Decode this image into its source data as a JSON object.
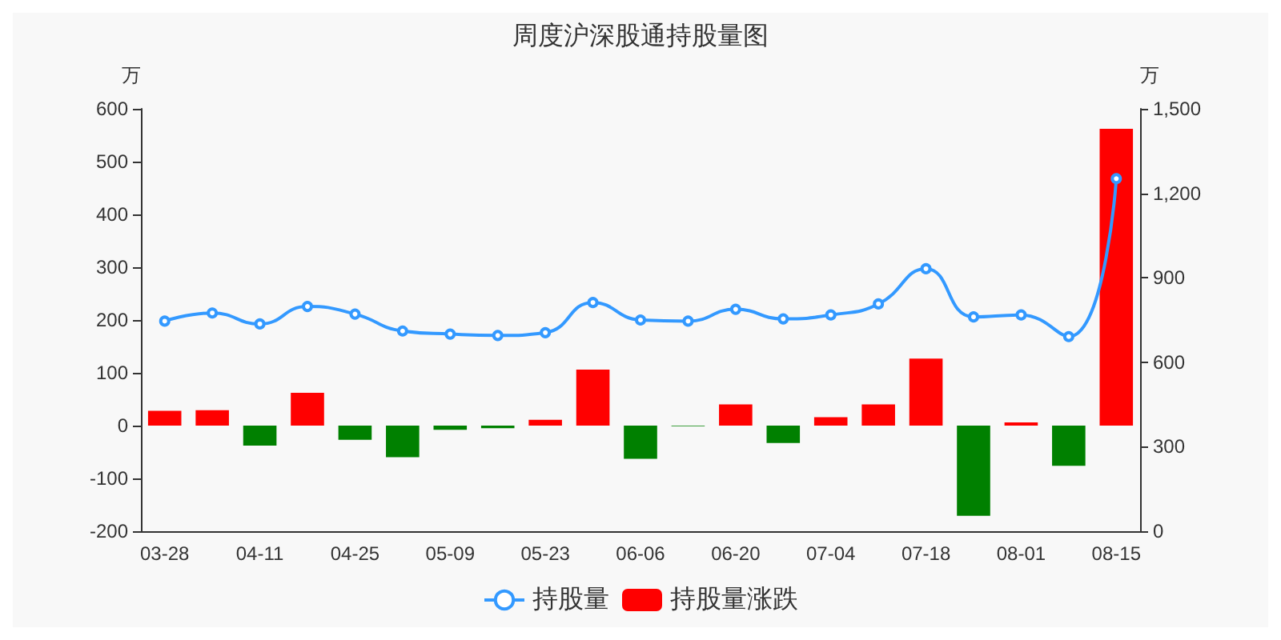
{
  "chart_data": {
    "type": "bar",
    "title": "周度沪深股通持股量图",
    "ylabel": "万",
    "y2label": "万",
    "categories": [
      "03-28",
      null,
      "04-11",
      null,
      "04-25",
      null,
      "05-09",
      null,
      "05-23",
      null,
      "06-06",
      null,
      "06-20",
      null,
      "07-04",
      null,
      "07-18",
      null,
      "08-01",
      null,
      "08-15"
    ],
    "series": [
      {
        "name": "持股量",
        "type": "line",
        "axis": "y2",
        "color": "#3399ff",
        "marker": "circle",
        "values": [
          746,
          775,
          736,
          798,
          771,
          711,
          700,
          695,
          705,
          812,
          750,
          746,
          788,
          754,
          768,
          807,
          932,
          761,
          768,
          691,
          1252
        ]
      },
      {
        "name": "持股量涨跌",
        "color": "#ff0000",
        "colors": [
          "#ff0000",
          "#ff0000",
          "#008000",
          "#ff0000",
          "#008000",
          "#008000",
          "#008000",
          "#008000",
          "#ff0000",
          "#ff0000",
          "#008000",
          "#008000",
          "#ff0000",
          "#008000",
          "#ff0000",
          "#ff0000",
          "#ff0000",
          "#008000",
          "#ff0000",
          "#008000",
          "#ff0000"
        ],
        "values": [
          28,
          29,
          -38,
          62,
          -27,
          -60,
          -8,
          -5,
          11,
          106,
          -63,
          -1,
          40,
          -33,
          16,
          40,
          127,
          -171,
          6,
          -76,
          562
        ]
      }
    ],
    "ylim": [
      -200,
      600
    ],
    "yticks": [
      -200,
      -100,
      0,
      100,
      200,
      300,
      400,
      500,
      600
    ],
    "y2lim": [
      0,
      1500
    ],
    "y2ticks": [
      0,
      300,
      600,
      900,
      {
        "value": 1200,
        "label": "1,200"
      },
      {
        "value": 1500,
        "label": "1,500"
      }
    ],
    "legend": "bottom",
    "grid": false
  }
}
